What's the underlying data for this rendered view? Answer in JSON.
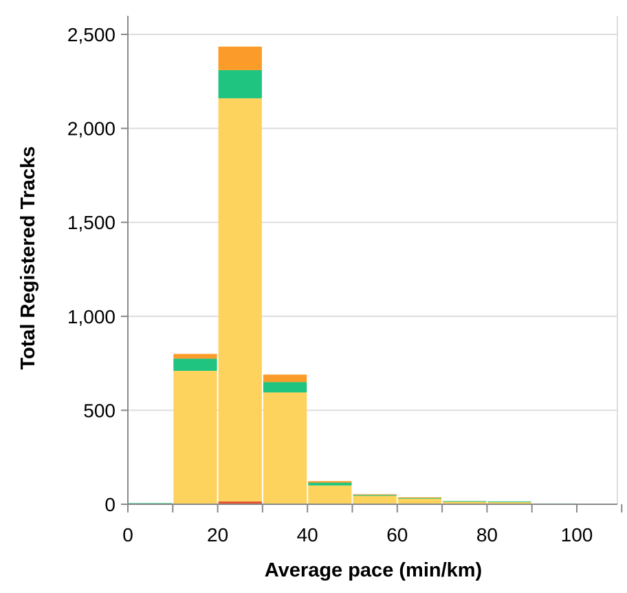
{
  "chart_data": {
    "type": "bar",
    "stacked": true,
    "xlabel": "Average pace (min/km)",
    "ylabel": "Total Registered Tracks",
    "xlim": [
      0,
      110
    ],
    "ylim": [
      0,
      2600
    ],
    "grid": true,
    "bins": [
      [
        0,
        10
      ],
      [
        10,
        20
      ],
      [
        20,
        30
      ],
      [
        30,
        40
      ],
      [
        40,
        50
      ],
      [
        50,
        60
      ],
      [
        60,
        70
      ],
      [
        70,
        80
      ],
      [
        80,
        90
      ],
      [
        90,
        100
      ],
      [
        100,
        110
      ]
    ],
    "x_ticks": [
      {
        "value": 0,
        "label": "0"
      },
      {
        "value": 20,
        "label": "20"
      },
      {
        "value": 40,
        "label": "40"
      },
      {
        "value": 60,
        "label": "60"
      },
      {
        "value": 80,
        "label": "80"
      },
      {
        "value": 100,
        "label": "100"
      }
    ],
    "y_ticks": [
      {
        "value": 0,
        "label": "0"
      },
      {
        "value": 500,
        "label": "500"
      },
      {
        "value": 1000,
        "label": "1,000"
      },
      {
        "value": 1500,
        "label": "1,500"
      },
      {
        "value": 2000,
        "label": "2,000"
      },
      {
        "value": 2500,
        "label": "2,500"
      }
    ],
    "series": [
      {
        "color": "#e8542f",
        "values": [
          0,
          0,
          15,
          0,
          0,
          0,
          0,
          0,
          0,
          0,
          0
        ]
      },
      {
        "color": "#fdd35e",
        "values": [
          5,
          710,
          2145,
          595,
          100,
          45,
          30,
          15,
          12,
          3,
          0
        ]
      },
      {
        "color": "#1ec47f",
        "values": [
          1,
          65,
          150,
          55,
          15,
          5,
          5,
          2,
          3,
          1,
          0
        ]
      },
      {
        "color": "#fb9c2a",
        "values": [
          0,
          25,
          125,
          40,
          8,
          3,
          2,
          0,
          0,
          0,
          0
        ]
      }
    ]
  }
}
